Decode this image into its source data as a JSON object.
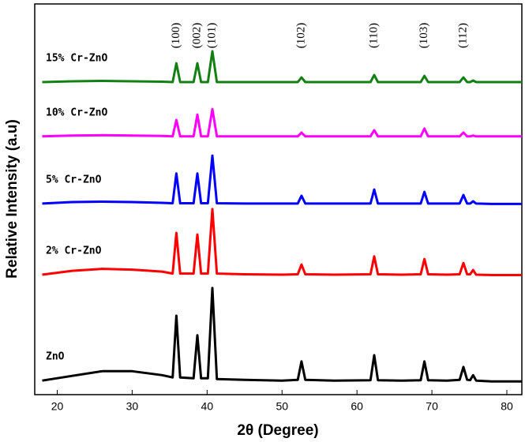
{
  "chart_data": {
    "type": "line",
    "xlabel": "2θ (Degree)",
    "ylabel": "Relative Intensity (a.u)",
    "x": [
      18,
      22,
      26,
      30,
      34,
      35.4,
      35.9,
      36.4,
      38.2,
      38.7,
      39.2,
      40.1,
      40.7,
      41.3,
      45,
      50,
      52.1,
      52.6,
      53.1,
      57,
      61.8,
      62.3,
      62.8,
      66,
      68.5,
      69,
      69.5,
      72,
      73.7,
      74.2,
      74.7,
      75.1,
      75.5,
      75.9,
      78,
      82
    ],
    "series": [
      {
        "name": "ZnO",
        "color": "#000000",
        "values": [
          3.6,
          4.8,
          6,
          6,
          5,
          4.4,
          20.2,
          4.4,
          4.2,
          15.2,
          4.2,
          4.2,
          27.3,
          4,
          3.8,
          3.6,
          3.8,
          8.5,
          3.8,
          3.6,
          3.7,
          10.1,
          3.7,
          3.6,
          3.7,
          8.5,
          3.7,
          3.6,
          3.8,
          7.1,
          3.8,
          3.7,
          5,
          3.6,
          3.4,
          3.4
        ]
      },
      {
        "name": "2% Cr-ZnO",
        "color": "#ff0000",
        "values": [
          30.7,
          31.7,
          32.2,
          32,
          31.5,
          31,
          41.4,
          31,
          31,
          41,
          31,
          31,
          47.5,
          31,
          30.8,
          30.7,
          30.8,
          33.3,
          30.8,
          30.7,
          30.8,
          35.4,
          30.8,
          30.7,
          30.8,
          34.7,
          30.8,
          30.7,
          30.8,
          33.7,
          30.8,
          30.8,
          31.9,
          30.7,
          30.6,
          30.6
        ]
      },
      {
        "name": "5% Cr-ZnO",
        "color": "#0000ff",
        "values": [
          48.9,
          49.3,
          49.4,
          49.3,
          49.1,
          49,
          56.6,
          49,
          49,
          56.6,
          49,
          49,
          61.2,
          49,
          48.9,
          48.9,
          48.9,
          50.9,
          48.9,
          48.9,
          48.9,
          52.5,
          48.9,
          48.9,
          48.9,
          51.9,
          48.9,
          48.9,
          48.9,
          51.1,
          48.9,
          48.9,
          49.5,
          48.9,
          48.8,
          48.8
        ]
      },
      {
        "name": "10% Cr-ZnO",
        "color": "#ff00ff",
        "values": [
          66.1,
          66.3,
          66.4,
          66.3,
          66.2,
          66.1,
          70.3,
          66.1,
          66.1,
          71.7,
          66.1,
          66.1,
          73.1,
          66.1,
          66.1,
          66.1,
          66.1,
          67.1,
          66.1,
          66.1,
          66.1,
          67.7,
          66.1,
          66.1,
          66.1,
          68.1,
          66.1,
          66.1,
          66.1,
          67.1,
          66.1,
          66.1,
          66.3,
          66.1,
          66.1,
          66.1
        ]
      },
      {
        "name": "15% Cr-ZnO",
        "color": "#138013",
        "values": [
          80,
          80.2,
          80.3,
          80.2,
          80.1,
          80,
          84.8,
          80,
          80,
          84.8,
          80,
          80,
          87.9,
          80,
          80,
          80,
          80,
          81.2,
          80,
          80,
          80,
          81.8,
          80,
          80,
          80,
          81.6,
          80,
          80,
          80,
          81.2,
          80,
          80,
          80.4,
          80,
          80,
          80
        ]
      }
    ],
    "annotations": [
      {
        "text": "(100)",
        "x": 35.9
      },
      {
        "text": "(002)",
        "x": 38.7
      },
      {
        "text": "(101)",
        "x": 40.7
      },
      {
        "text": "(102)",
        "x": 52.6
      },
      {
        "text": "(110)",
        "x": 62.3
      },
      {
        "text": "(103)",
        "x": 69
      },
      {
        "text": "(112)",
        "x": 74.2
      }
    ],
    "xlim": [
      17,
      82
    ],
    "xticks": [
      20,
      30,
      40,
      50,
      60,
      70,
      80
    ],
    "ylim": [
      0,
      100
    ]
  }
}
